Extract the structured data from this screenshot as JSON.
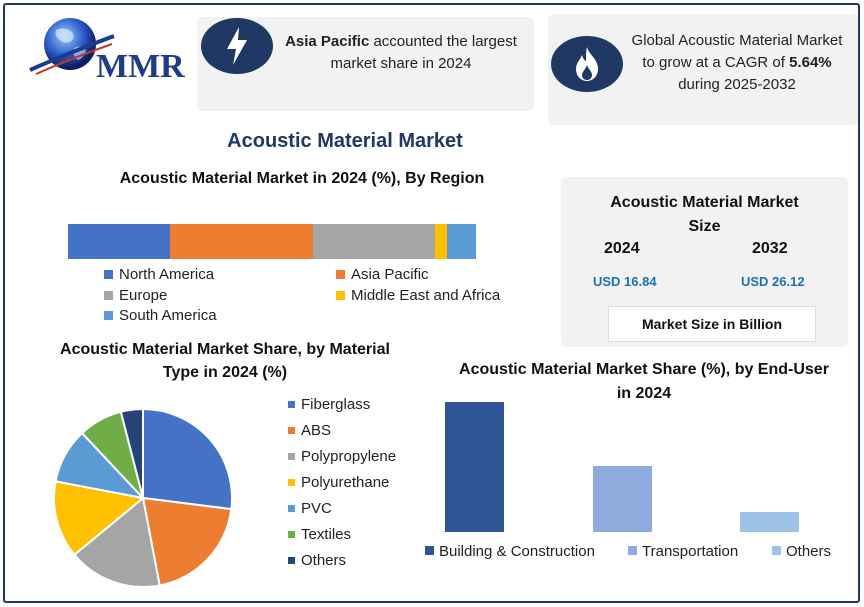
{
  "logo": {
    "text": "MMR"
  },
  "cards": {
    "region_highlight": {
      "bold": "Asia Pacific",
      "rest": " accounted the largest market share in 2024",
      "icon": "lightning-icon"
    },
    "cagr": {
      "pre": "Global Acoustic Material Market to grow at a CAGR of ",
      "bold": "5.64%",
      "post": " during 2025-2032",
      "icon": "flame-icon"
    }
  },
  "main_title": "Acoustic Material Market",
  "market_size": {
    "title": "Acoustic Material Market Size",
    "year_1": "2024",
    "year_2": "2032",
    "value_1": "USD 16.84",
    "value_2": "USD 26.12",
    "unit": "Market Size in Billion"
  },
  "chart_data": [
    {
      "type": "bar",
      "stacked": true,
      "orientation": "horizontal",
      "title": "Acoustic Material Market in 2024 (%), By Region",
      "series": [
        {
          "name": "North America",
          "values": [
            25
          ],
          "color": "#4472c4"
        },
        {
          "name": "Asia Pacific",
          "values": [
            35
          ],
          "color": "#ed7d31"
        },
        {
          "name": "Europe",
          "values": [
            30
          ],
          "color": "#a5a5a5"
        },
        {
          "name": "Middle East and Africa",
          "values": [
            3
          ],
          "color": "#ffc000"
        },
        {
          "name": "South America",
          "values": [
            7
          ],
          "color": "#5b9bd5"
        }
      ],
      "legend": "bottom"
    },
    {
      "type": "pie",
      "title": "Acoustic Material Market Share, by Material Type in 2024 (%)",
      "categories": [
        "Fiberglass",
        "ABS",
        "Polypropylene",
        "Polyurethane",
        "PVC",
        "Textiles",
        "Others"
      ],
      "values": [
        27,
        20,
        17,
        14,
        10,
        8,
        4
      ],
      "colors": [
        "#4472c4",
        "#ed7d31",
        "#a5a5a5",
        "#ffc000",
        "#5b9bd5",
        "#70ad47",
        "#264478"
      ],
      "legend": "right"
    },
    {
      "type": "bar",
      "title": "Acoustic Material Market Share (%), by End-User in 2024",
      "categories": [
        "Building & Construction",
        "Transportation",
        "Others"
      ],
      "values": [
        65,
        33,
        10
      ],
      "colors": [
        "#2f5597",
        "#8faadc",
        "#9dc3e6"
      ],
      "ylim": [
        0,
        65
      ],
      "legend": "bottom"
    }
  ]
}
